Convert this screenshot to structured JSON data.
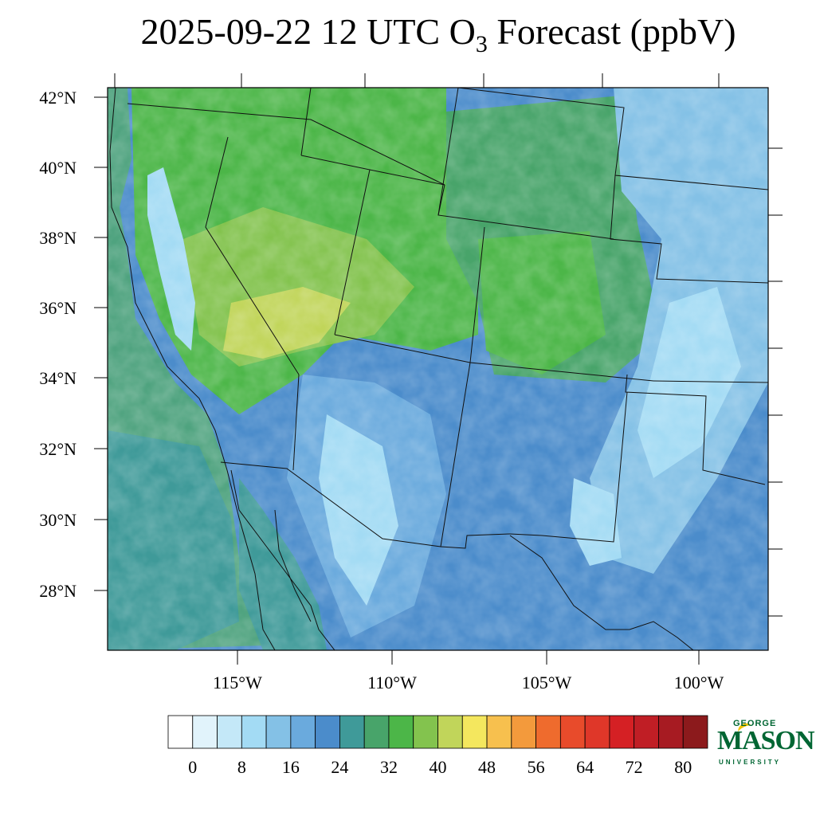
{
  "title": {
    "prefix": "2025-09-22 12 UTC O",
    "subscript": "3",
    "suffix": " Forecast (ppbV)"
  },
  "map": {
    "projection": "lambert-conformal",
    "variable": "surface ozone forecast",
    "lat_labels": [
      "42°N",
      "40°N",
      "38°N",
      "36°N",
      "34°N",
      "32°N",
      "30°N",
      "28°N"
    ],
    "lon_labels": [
      "115°W",
      "110°W",
      "105°W",
      "100°W"
    ],
    "features": [
      "state-boundaries",
      "coastline",
      "us-mexico-border"
    ]
  },
  "colorbar": {
    "tick_labels": [
      "0",
      "8",
      "16",
      "24",
      "32",
      "40",
      "48",
      "56",
      "64",
      "72",
      "80"
    ],
    "colors": [
      "#ffffff",
      "#e1f3fb",
      "#c4e8f8",
      "#a3dbf4",
      "#84c1e6",
      "#6aaadd",
      "#4b8ccb",
      "#3f9a99",
      "#48a46a",
      "#4cb648",
      "#83c34e",
      "#c1d55a",
      "#f4e75e",
      "#f7c04e",
      "#f39a3c",
      "#ef6b2d",
      "#e84b2b",
      "#df3729",
      "#d52024",
      "#c01e25",
      "#a71b22",
      "#8c1a1c"
    ]
  },
  "logo": {
    "line1": "GEORGE",
    "line2": "MASON",
    "line3": "UNIVERSITY"
  }
}
